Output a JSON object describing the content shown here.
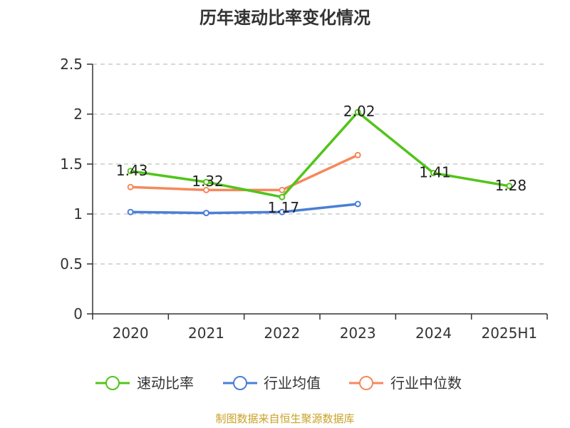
{
  "chart_data": {
    "type": "line",
    "title": "历年速动比率变化情况",
    "categories": [
      "2020",
      "2021",
      "2022",
      "2023",
      "2024",
      "2025H1"
    ],
    "ylim": [
      0,
      2.5
    ],
    "yticks": [
      0,
      0.5,
      1,
      1.5,
      2,
      2.5
    ],
    "ytick_labels": [
      "0",
      "0.5",
      "1",
      "1.5",
      "2",
      "2.5"
    ],
    "grid": true,
    "legend_position": "bottom",
    "series": [
      {
        "name": "速动比率",
        "color": "#52c41a",
        "values": [
          1.43,
          1.32,
          1.17,
          2.02,
          1.41,
          1.28
        ],
        "labels": [
          "1.43",
          "1.32",
          "1.17",
          "2.02",
          "1.41",
          "1.28"
        ]
      },
      {
        "name": "行业均值",
        "color": "#4a7fd6",
        "values": [
          1.02,
          1.01,
          1.02,
          1.1,
          null,
          null
        ]
      },
      {
        "name": "行业中位数",
        "color": "#f5895b",
        "values": [
          1.27,
          1.24,
          1.24,
          1.59,
          null,
          null
        ]
      }
    ]
  },
  "source_note": "制图数据来自恒生聚源数据库"
}
